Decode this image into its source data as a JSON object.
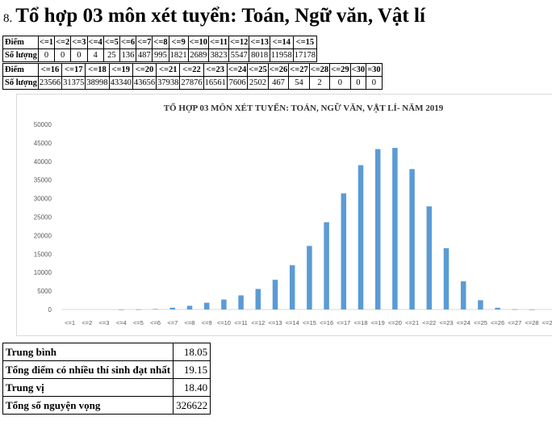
{
  "heading": {
    "number": "8.",
    "text": "Tổ hợp 03 môn xét tuyển: Toán, Ngữ văn, Vật lí"
  },
  "table1": {
    "row_label_score": "Điểm",
    "row_label_count": "Số lượng",
    "scores": [
      "<=1",
      "<=2",
      "<=3",
      "<=4",
      "<=5",
      "<=6",
      "<=7",
      "<=8",
      "<=9",
      "<=10",
      "<=11",
      "<=12",
      "<=13",
      "<=14",
      "<=15"
    ],
    "counts": [
      "0",
      "0",
      "0",
      "4",
      "25",
      "136",
      "487",
      "995",
      "1821",
      "2689",
      "3823",
      "5547",
      "8018",
      "11958",
      "17178"
    ]
  },
  "table2": {
    "row_label_score": "Điểm",
    "row_label_count": "Số lượng",
    "scores": [
      "<=16",
      "<=17",
      "<=18",
      "<=19",
      "<=20",
      "<=21",
      "<=22",
      "<=23",
      "<=24",
      "<=25",
      "<=26",
      "<=27",
      "<=28",
      "<=29",
      "<30",
      "=30"
    ],
    "counts": [
      "23566",
      "31375",
      "38998",
      "43340",
      "43656",
      "37938",
      "27876",
      "16561",
      "7606",
      "2502",
      "467",
      "54",
      "2",
      "0",
      "0",
      "0"
    ]
  },
  "chart_data": {
    "type": "bar",
    "title": "TỔ HỢP 03 MÔN XÉT TUYỂN: TOÁN, NGỮ VĂN, VẬT LÍ- NĂM 2019",
    "categories": [
      "<=1",
      "<=2",
      "<=3",
      "<=4",
      "<=5",
      "<=6",
      "<=7",
      "<=8",
      "<=9",
      "<=10",
      "<=11",
      "<=12",
      "<=13",
      "<=14",
      "<=15",
      "<=16",
      "<=17",
      "<=18",
      "<=19",
      "<=20",
      "<=21",
      "<=22",
      "<=23",
      "<=24",
      "<=25",
      "<=26",
      "<=27",
      "<=28",
      "<=29"
    ],
    "values": [
      0,
      0,
      0,
      4,
      25,
      136,
      487,
      995,
      1821,
      2689,
      3823,
      5547,
      8018,
      11958,
      17178,
      23566,
      31375,
      38998,
      43340,
      43656,
      37938,
      27876,
      16561,
      7606,
      2502,
      467,
      54,
      2,
      0
    ],
    "ylim": [
      0,
      50000
    ],
    "yticks": [
      0,
      5000,
      10000,
      15000,
      20000,
      25000,
      30000,
      35000,
      40000,
      45000,
      50000
    ],
    "bar_color": "#5b9bd5",
    "grid": false
  },
  "stats": [
    {
      "label": "Trung bình",
      "value": "18.05"
    },
    {
      "label": "Tổng điểm có nhiều thí sinh đạt nhất",
      "value": "19.15"
    },
    {
      "label": "Trung vị",
      "value": "18.40"
    },
    {
      "label": "Tổng số nguyện vọng",
      "value": "326622"
    }
  ]
}
